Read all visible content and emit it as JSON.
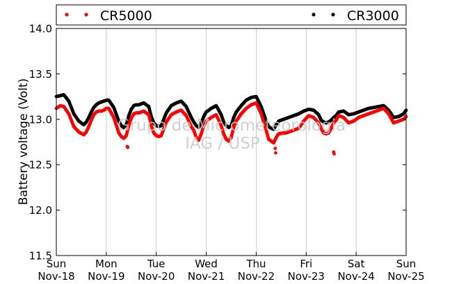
{
  "chart_data": {
    "type": "scatter",
    "title": "",
    "xlabel": "",
    "ylabel": "Battery voltage (Volt)",
    "ylim": [
      11.5,
      14.0
    ],
    "yticks": [
      "11.5",
      "12.0",
      "12.5",
      "13.0",
      "13.5",
      "14.0"
    ],
    "xlim": [
      "2012-11-18",
      "2012-11-25"
    ],
    "xticks": [
      {
        "day": "Sun",
        "date": "Nov-18"
      },
      {
        "day": "Mon",
        "date": "Nov-19"
      },
      {
        "day": "Tue",
        "date": "Nov-20"
      },
      {
        "day": "Wed",
        "date": "Nov-21"
      },
      {
        "day": "Thu",
        "date": "Nov-22"
      },
      {
        "day": "Fri",
        "date": "Nov-23"
      },
      {
        "day": "Sat",
        "date": "Nov-24"
      },
      {
        "day": "Sun",
        "date": "Nov-25"
      }
    ],
    "grid": "vertical",
    "legend_position": "top",
    "watermark": [
      "Grupo de Micrometeorologia",
      "IAG / USP"
    ],
    "series": [
      {
        "name": "CR5000",
        "color": "#ff0000",
        "x": [
          0.0,
          0.08,
          0.15,
          0.25,
          0.35,
          0.45,
          0.55,
          0.6,
          0.65,
          0.7,
          0.75,
          0.8,
          0.85,
          0.9,
          0.95,
          1.0,
          1.05,
          1.15,
          1.25,
          1.3,
          1.35,
          1.4,
          1.45,
          1.5,
          1.55,
          1.6,
          1.65,
          1.75,
          1.85,
          1.9,
          1.95,
          2.0,
          2.05,
          2.1,
          2.2,
          2.3,
          2.4,
          2.5,
          2.6,
          2.7,
          2.75,
          2.8,
          2.85,
          2.9,
          2.95,
          3.0,
          3.1,
          3.2,
          3.3,
          3.35,
          3.4,
          3.45,
          3.5,
          3.55,
          3.6,
          3.7,
          3.8,
          3.9,
          4.0,
          4.1,
          4.2,
          4.25,
          4.3,
          4.35,
          4.4,
          4.45,
          4.55,
          4.6,
          4.65,
          4.75,
          4.85,
          4.95,
          5.05,
          5.15,
          5.25,
          5.3,
          5.35,
          5.4,
          5.45,
          5.5,
          5.55,
          5.6,
          5.65,
          5.75,
          5.85,
          5.95,
          6.05,
          6.15,
          6.25,
          6.35,
          6.45,
          6.55,
          6.65,
          6.75,
          6.85,
          6.95,
          7.0
        ],
        "y": [
          13.12,
          13.15,
          13.14,
          13.06,
          12.92,
          12.86,
          12.83,
          12.86,
          12.92,
          12.99,
          13.05,
          13.08,
          13.09,
          13.09,
          13.1,
          13.12,
          13.12,
          13.02,
          12.85,
          12.81,
          12.79,
          12.82,
          12.93,
          13.01,
          13.06,
          13.07,
          13.07,
          13.09,
          13.05,
          12.93,
          12.85,
          12.82,
          12.81,
          12.82,
          12.97,
          13.05,
          13.08,
          13.1,
          13.04,
          12.92,
          12.88,
          12.8,
          12.77,
          12.84,
          12.93,
          12.98,
          13.02,
          13.05,
          12.93,
          12.84,
          12.78,
          12.76,
          12.8,
          12.91,
          12.98,
          13.06,
          13.12,
          13.16,
          13.18,
          13.06,
          12.88,
          12.78,
          12.76,
          12.74,
          12.8,
          12.84,
          12.85,
          12.85,
          12.86,
          12.88,
          12.9,
          12.98,
          13.04,
          13.02,
          12.96,
          12.9,
          12.85,
          12.84,
          12.85,
          12.9,
          12.96,
          12.99,
          13.04,
          13.02,
          12.96,
          12.98,
          13.02,
          13.04,
          13.06,
          13.08,
          13.1,
          13.12,
          13.06,
          12.96,
          12.98,
          13.0,
          13.03
        ],
        "outliers": [
          {
            "x": 1.42,
            "y": 12.7
          },
          {
            "x": 1.43,
            "y": 12.69
          },
          {
            "x": 4.38,
            "y": 12.68
          },
          {
            "x": 4.39,
            "y": 12.63
          },
          {
            "x": 5.55,
            "y": 12.64
          },
          {
            "x": 5.56,
            "y": 12.62
          }
        ]
      },
      {
        "name": "CR3000",
        "color": "#000000",
        "x": [
          0.0,
          0.08,
          0.15,
          0.25,
          0.35,
          0.45,
          0.55,
          0.6,
          0.65,
          0.7,
          0.75,
          0.8,
          0.85,
          0.9,
          0.95,
          1.0,
          1.05,
          1.15,
          1.25,
          1.3,
          1.35,
          1.4,
          1.45,
          1.5,
          1.55,
          1.6,
          1.65,
          1.75,
          1.85,
          1.9,
          1.95,
          2.0,
          2.05,
          2.1,
          2.2,
          2.3,
          2.4,
          2.5,
          2.6,
          2.7,
          2.75,
          2.8,
          2.85,
          2.9,
          2.95,
          3.0,
          3.1,
          3.2,
          3.3,
          3.35,
          3.4,
          3.45,
          3.5,
          3.55,
          3.6,
          3.7,
          3.8,
          3.9,
          4.0,
          4.1,
          4.2,
          4.25,
          4.3,
          4.35,
          4.4,
          4.45,
          4.55,
          4.6,
          4.65,
          4.75,
          4.85,
          4.95,
          5.05,
          5.15,
          5.25,
          5.3,
          5.35,
          5.4,
          5.45,
          5.5,
          5.55,
          5.6,
          5.65,
          5.75,
          5.85,
          5.95,
          6.05,
          6.15,
          6.25,
          6.35,
          6.45,
          6.55,
          6.65,
          6.75,
          6.85,
          6.95,
          7.0
        ],
        "y": [
          13.25,
          13.26,
          13.27,
          13.2,
          13.06,
          12.98,
          12.94,
          12.97,
          13.02,
          13.08,
          13.13,
          13.16,
          13.18,
          13.19,
          13.2,
          13.21,
          13.21,
          13.13,
          12.98,
          12.93,
          12.91,
          12.94,
          13.04,
          13.11,
          13.15,
          13.16,
          13.16,
          13.18,
          13.14,
          13.03,
          12.96,
          12.93,
          12.92,
          12.93,
          13.07,
          13.15,
          13.18,
          13.2,
          13.14,
          13.02,
          12.97,
          12.93,
          12.91,
          12.96,
          13.03,
          13.08,
          13.12,
          13.15,
          13.05,
          12.97,
          12.93,
          12.91,
          12.93,
          13.02,
          13.08,
          13.15,
          13.21,
          13.24,
          13.25,
          13.14,
          12.98,
          12.92,
          12.9,
          12.89,
          12.94,
          12.98,
          13.0,
          13.01,
          13.02,
          13.04,
          13.06,
          13.09,
          13.11,
          13.1,
          13.05,
          12.99,
          12.97,
          12.96,
          12.97,
          12.99,
          13.02,
          13.04,
          13.08,
          13.09,
          13.05,
          13.06,
          13.08,
          13.1,
          13.12,
          13.13,
          13.14,
          13.15,
          13.1,
          13.02,
          13.03,
          13.06,
          13.1
        ]
      }
    ]
  }
}
